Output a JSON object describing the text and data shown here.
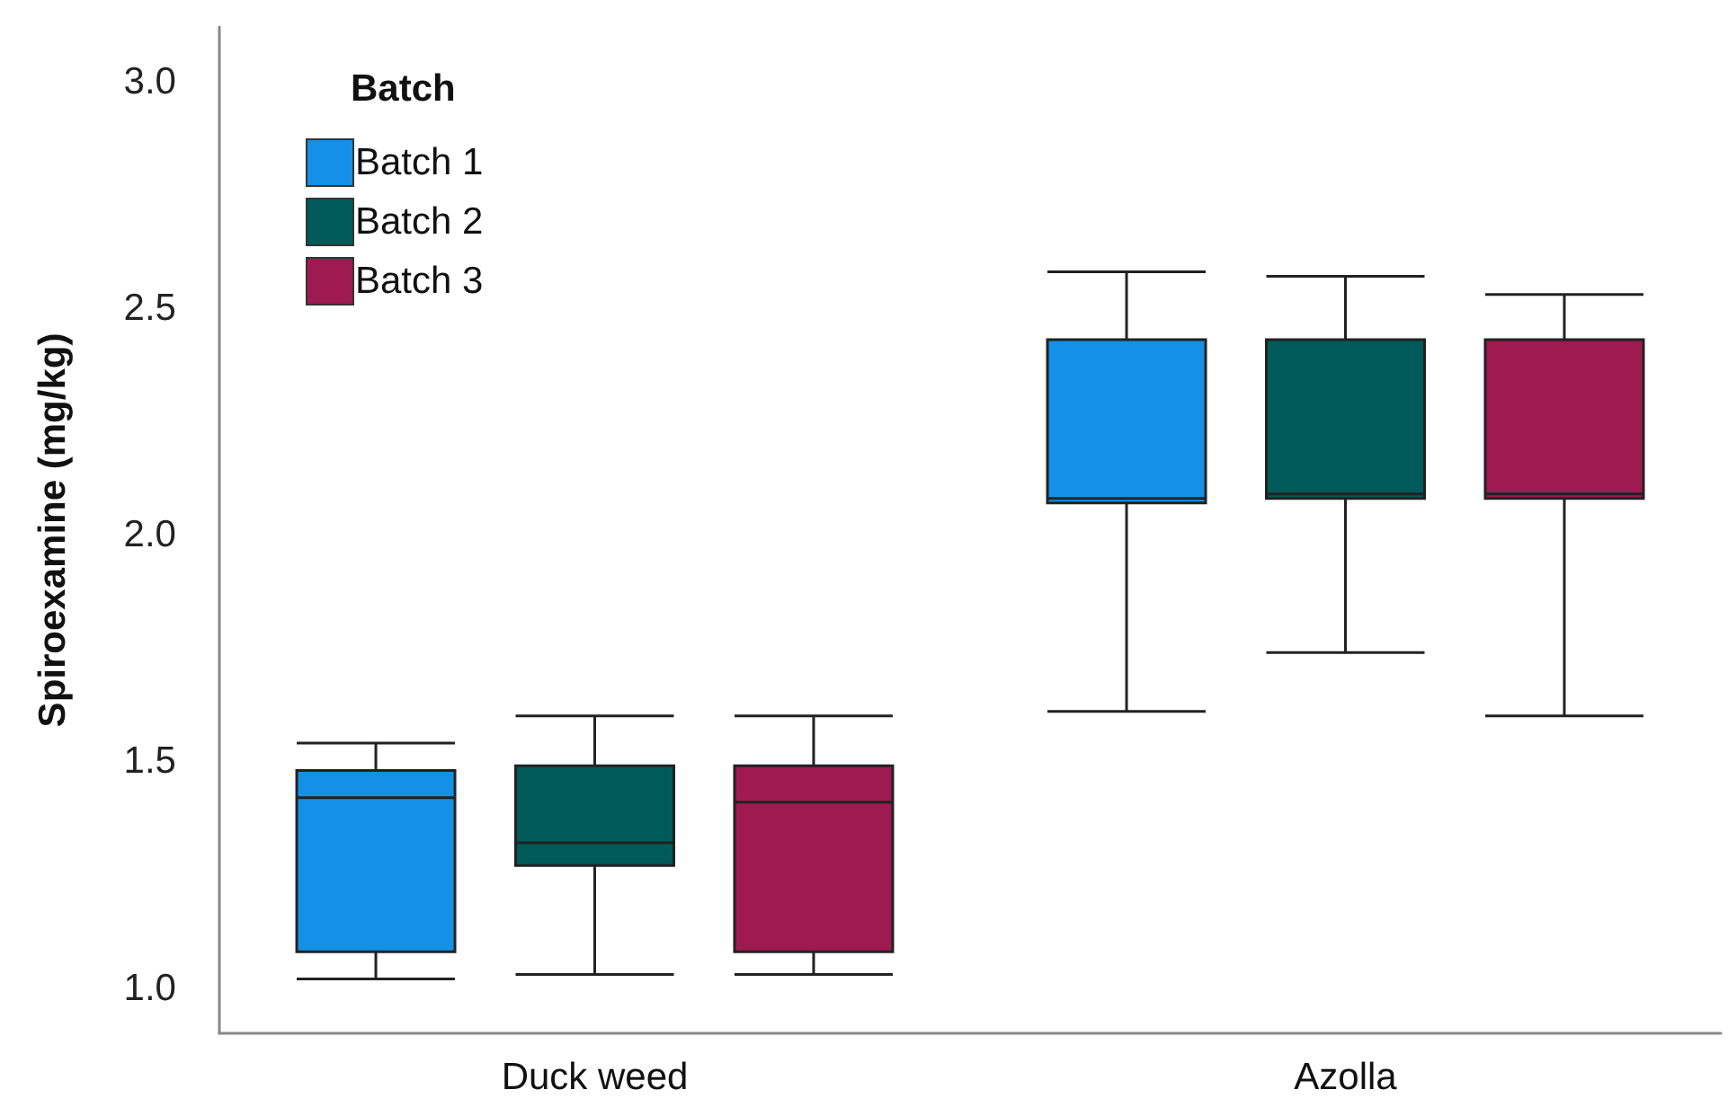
{
  "chart_data": {
    "type": "box",
    "ylabel": "Spiroexamine (mg/kg)",
    "legend_title": "Batch",
    "categories": [
      "Duck weed",
      "Azolla"
    ],
    "series": [
      {
        "name": "Batch 1",
        "color": "#1490e6",
        "boxes": [
          {
            "low": 1.02,
            "q1": 1.08,
            "median": 1.42,
            "q3": 1.48,
            "high": 1.54
          },
          {
            "low": 1.61,
            "q1": 2.07,
            "median": 2.08,
            "q3": 2.43,
            "high": 2.58
          }
        ]
      },
      {
        "name": "Batch 2",
        "color": "#005a5a",
        "boxes": [
          {
            "low": 1.03,
            "q1": 1.27,
            "median": 1.32,
            "q3": 1.49,
            "high": 1.6
          },
          {
            "low": 1.74,
            "q1": 2.08,
            "median": 2.09,
            "q3": 2.43,
            "high": 2.57
          }
        ]
      },
      {
        "name": "Batch 3",
        "color": "#9e1a50",
        "boxes": [
          {
            "low": 1.03,
            "q1": 1.08,
            "median": 1.41,
            "q3": 1.49,
            "high": 1.6
          },
          {
            "low": 1.6,
            "q1": 2.08,
            "median": 2.09,
            "q3": 2.43,
            "high": 2.53
          }
        ]
      }
    ],
    "ylim": [
      0.9,
      3.12
    ],
    "yticks": [
      {
        "value": 1,
        "label": "1.0"
      },
      {
        "value": 1.5,
        "label": "1.5"
      },
      {
        "value": 2,
        "label": "2.0"
      },
      {
        "value": 2.5,
        "label": "2.5"
      },
      {
        "value": 3,
        "label": "3.0"
      }
    ],
    "grid": false,
    "legend": "top left"
  }
}
